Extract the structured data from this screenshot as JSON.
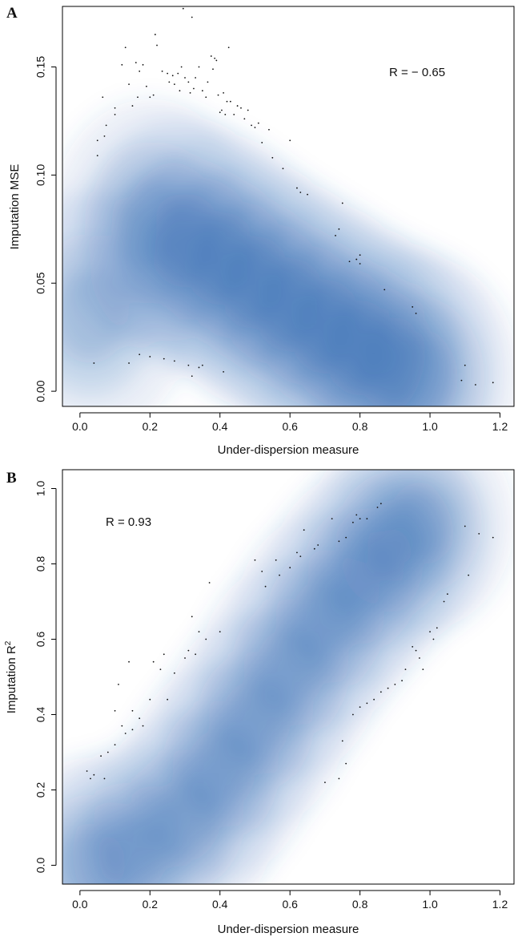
{
  "chart_data": [
    {
      "type": "scatter",
      "panel": "A",
      "xlabel": "Under-dispersion measure",
      "ylabel": "Imputation MSE",
      "annotation": "R = − 0.65",
      "xlim": [
        -0.05,
        1.24
      ],
      "ylim": [
        -0.007,
        0.178
      ],
      "xticks": [
        0.0,
        0.2,
        0.4,
        0.6,
        0.8,
        1.0,
        1.2
      ],
      "xtick_labels": [
        "0.0",
        "0.2",
        "0.4",
        "0.6",
        "0.8",
        "1.0",
        "1.2"
      ],
      "yticks": [
        0.0,
        0.05,
        0.1,
        0.15
      ],
      "ytick_labels": [
        "0.00",
        "0.05",
        "0.10",
        "0.15"
      ],
      "density_color": "#2b66ad",
      "density_ridge": [
        [
          0.03,
          0.035
        ],
        [
          0.2,
          0.078
        ],
        [
          0.3,
          0.07
        ],
        [
          0.4,
          0.062
        ],
        [
          0.5,
          0.05
        ],
        [
          0.6,
          0.04
        ],
        [
          0.7,
          0.03
        ],
        [
          0.8,
          0.02
        ],
        [
          0.9,
          0.012
        ],
        [
          0.97,
          0.006
        ]
      ],
      "outliers": [
        {
          "x": 0.05,
          "y": 0.109
        },
        {
          "x": 0.05,
          "y": 0.116
        },
        {
          "x": 0.065,
          "y": 0.136
        },
        {
          "x": 0.07,
          "y": 0.118
        },
        {
          "x": 0.075,
          "y": 0.123
        },
        {
          "x": 0.1,
          "y": 0.128
        },
        {
          "x": 0.1,
          "y": 0.131
        },
        {
          "x": 0.12,
          "y": 0.151
        },
        {
          "x": 0.13,
          "y": 0.159
        },
        {
          "x": 0.14,
          "y": 0.142
        },
        {
          "x": 0.15,
          "y": 0.132
        },
        {
          "x": 0.16,
          "y": 0.152
        },
        {
          "x": 0.165,
          "y": 0.136
        },
        {
          "x": 0.17,
          "y": 0.148
        },
        {
          "x": 0.18,
          "y": 0.151
        },
        {
          "x": 0.19,
          "y": 0.141
        },
        {
          "x": 0.2,
          "y": 0.136
        },
        {
          "x": 0.21,
          "y": 0.137
        },
        {
          "x": 0.215,
          "y": 0.165
        },
        {
          "x": 0.22,
          "y": 0.16
        },
        {
          "x": 0.235,
          "y": 0.148
        },
        {
          "x": 0.25,
          "y": 0.147
        },
        {
          "x": 0.255,
          "y": 0.143
        },
        {
          "x": 0.265,
          "y": 0.146
        },
        {
          "x": 0.27,
          "y": 0.142
        },
        {
          "x": 0.28,
          "y": 0.147
        },
        {
          "x": 0.285,
          "y": 0.139
        },
        {
          "x": 0.29,
          "y": 0.15
        },
        {
          "x": 0.295,
          "y": 0.177
        },
        {
          "x": 0.3,
          "y": 0.145
        },
        {
          "x": 0.31,
          "y": 0.143
        },
        {
          "x": 0.315,
          "y": 0.138
        },
        {
          "x": 0.32,
          "y": 0.173
        },
        {
          "x": 0.325,
          "y": 0.14
        },
        {
          "x": 0.33,
          "y": 0.145
        },
        {
          "x": 0.34,
          "y": 0.15
        },
        {
          "x": 0.35,
          "y": 0.139
        },
        {
          "x": 0.36,
          "y": 0.136
        },
        {
          "x": 0.365,
          "y": 0.143
        },
        {
          "x": 0.375,
          "y": 0.155
        },
        {
          "x": 0.38,
          "y": 0.149
        },
        {
          "x": 0.385,
          "y": 0.154
        },
        {
          "x": 0.39,
          "y": 0.153
        },
        {
          "x": 0.395,
          "y": 0.137
        },
        {
          "x": 0.4,
          "y": 0.129
        },
        {
          "x": 0.405,
          "y": 0.13
        },
        {
          "x": 0.41,
          "y": 0.138
        },
        {
          "x": 0.415,
          "y": 0.128
        },
        {
          "x": 0.42,
          "y": 0.134
        },
        {
          "x": 0.425,
          "y": 0.159
        },
        {
          "x": 0.43,
          "y": 0.134
        },
        {
          "x": 0.44,
          "y": 0.128
        },
        {
          "x": 0.45,
          "y": 0.132
        },
        {
          "x": 0.46,
          "y": 0.131
        },
        {
          "x": 0.47,
          "y": 0.126
        },
        {
          "x": 0.48,
          "y": 0.13
        },
        {
          "x": 0.49,
          "y": 0.123
        },
        {
          "x": 0.5,
          "y": 0.122
        },
        {
          "x": 0.51,
          "y": 0.124
        },
        {
          "x": 0.52,
          "y": 0.115
        },
        {
          "x": 0.54,
          "y": 0.121
        },
        {
          "x": 0.55,
          "y": 0.108
        },
        {
          "x": 0.58,
          "y": 0.103
        },
        {
          "x": 0.6,
          "y": 0.116
        },
        {
          "x": 0.62,
          "y": 0.094
        },
        {
          "x": 0.63,
          "y": 0.092
        },
        {
          "x": 0.65,
          "y": 0.091
        },
        {
          "x": 0.73,
          "y": 0.072
        },
        {
          "x": 0.74,
          "y": 0.075
        },
        {
          "x": 0.75,
          "y": 0.087
        },
        {
          "x": 0.77,
          "y": 0.06
        },
        {
          "x": 0.79,
          "y": 0.061
        },
        {
          "x": 0.8,
          "y": 0.063
        },
        {
          "x": 0.8,
          "y": 0.059
        },
        {
          "x": 0.87,
          "y": 0.047
        },
        {
          "x": 0.95,
          "y": 0.039
        },
        {
          "x": 0.96,
          "y": 0.036
        },
        {
          "x": 0.04,
          "y": 0.013
        },
        {
          "x": 0.14,
          "y": 0.013
        },
        {
          "x": 0.17,
          "y": 0.017
        },
        {
          "x": 0.2,
          "y": 0.016
        },
        {
          "x": 0.24,
          "y": 0.015
        },
        {
          "x": 0.27,
          "y": 0.014
        },
        {
          "x": 0.31,
          "y": 0.012
        },
        {
          "x": 0.32,
          "y": 0.007
        },
        {
          "x": 0.34,
          "y": 0.011
        },
        {
          "x": 0.35,
          "y": 0.012
        },
        {
          "x": 0.41,
          "y": 0.009
        },
        {
          "x": 1.09,
          "y": 0.005
        },
        {
          "x": 1.1,
          "y": 0.012
        },
        {
          "x": 1.13,
          "y": 0.003
        },
        {
          "x": 1.18,
          "y": 0.004
        }
      ]
    },
    {
      "type": "scatter",
      "panel": "B",
      "xlabel": "Under-dispersion measure",
      "ylabel": "Imputation R",
      "ylabel_superscript": "2",
      "annotation": "R = 0.93",
      "xlim": [
        -0.05,
        1.24
      ],
      "ylim": [
        -0.05,
        1.05
      ],
      "xticks": [
        0.0,
        0.2,
        0.4,
        0.6,
        0.8,
        1.0,
        1.2
      ],
      "xtick_labels": [
        "0.0",
        "0.2",
        "0.4",
        "0.6",
        "0.8",
        "1.0",
        "1.2"
      ],
      "yticks": [
        0.0,
        0.2,
        0.4,
        0.6,
        0.8,
        1.0
      ],
      "ytick_labels": [
        "0.0",
        "0.2",
        "0.4",
        "0.6",
        "0.8",
        "1.0"
      ],
      "density_color": "#2b66ad",
      "density_ridge": [
        [
          0.03,
          0.0
        ],
        [
          0.15,
          0.03
        ],
        [
          0.3,
          0.12
        ],
        [
          0.4,
          0.25
        ],
        [
          0.5,
          0.38
        ],
        [
          0.6,
          0.52
        ],
        [
          0.7,
          0.65
        ],
        [
          0.8,
          0.76
        ],
        [
          0.9,
          0.86
        ],
        [
          0.98,
          0.91
        ]
      ],
      "outliers": [
        {
          "x": 0.02,
          "y": 0.25
        },
        {
          "x": 0.03,
          "y": 0.23
        },
        {
          "x": 0.04,
          "y": 0.24
        },
        {
          "x": 0.06,
          "y": 0.29
        },
        {
          "x": 0.07,
          "y": 0.23
        },
        {
          "x": 0.08,
          "y": 0.3
        },
        {
          "x": 0.1,
          "y": 0.32
        },
        {
          "x": 0.1,
          "y": 0.41
        },
        {
          "x": 0.11,
          "y": 0.48
        },
        {
          "x": 0.12,
          "y": 0.37
        },
        {
          "x": 0.13,
          "y": 0.35
        },
        {
          "x": 0.14,
          "y": 0.54
        },
        {
          "x": 0.15,
          "y": 0.41
        },
        {
          "x": 0.15,
          "y": 0.36
        },
        {
          "x": 0.17,
          "y": 0.39
        },
        {
          "x": 0.18,
          "y": 0.37
        },
        {
          "x": 0.2,
          "y": 0.44
        },
        {
          "x": 0.21,
          "y": 0.54
        },
        {
          "x": 0.23,
          "y": 0.52
        },
        {
          "x": 0.24,
          "y": 0.56
        },
        {
          "x": 0.25,
          "y": 0.44
        },
        {
          "x": 0.27,
          "y": 0.51
        },
        {
          "x": 0.3,
          "y": 0.55
        },
        {
          "x": 0.31,
          "y": 0.57
        },
        {
          "x": 0.32,
          "y": 0.66
        },
        {
          "x": 0.33,
          "y": 0.56
        },
        {
          "x": 0.34,
          "y": 0.62
        },
        {
          "x": 0.36,
          "y": 0.6
        },
        {
          "x": 0.37,
          "y": 0.75
        },
        {
          "x": 0.4,
          "y": 0.62
        },
        {
          "x": 0.5,
          "y": 0.81
        },
        {
          "x": 0.52,
          "y": 0.78
        },
        {
          "x": 0.53,
          "y": 0.74
        },
        {
          "x": 0.56,
          "y": 0.81
        },
        {
          "x": 0.57,
          "y": 0.77
        },
        {
          "x": 0.6,
          "y": 0.79
        },
        {
          "x": 0.62,
          "y": 0.83
        },
        {
          "x": 0.63,
          "y": 0.82
        },
        {
          "x": 0.64,
          "y": 0.89
        },
        {
          "x": 0.67,
          "y": 0.84
        },
        {
          "x": 0.68,
          "y": 0.85
        },
        {
          "x": 0.72,
          "y": 0.92
        },
        {
          "x": 0.74,
          "y": 0.86
        },
        {
          "x": 0.76,
          "y": 0.87
        },
        {
          "x": 0.78,
          "y": 0.91
        },
        {
          "x": 0.79,
          "y": 0.93
        },
        {
          "x": 0.8,
          "y": 0.92
        },
        {
          "x": 0.82,
          "y": 0.92
        },
        {
          "x": 0.85,
          "y": 0.95
        },
        {
          "x": 0.86,
          "y": 0.96
        },
        {
          "x": 0.7,
          "y": 0.22
        },
        {
          "x": 0.74,
          "y": 0.23
        },
        {
          "x": 0.75,
          "y": 0.33
        },
        {
          "x": 0.76,
          "y": 0.27
        },
        {
          "x": 0.78,
          "y": 0.4
        },
        {
          "x": 0.8,
          "y": 0.42
        },
        {
          "x": 0.82,
          "y": 0.43
        },
        {
          "x": 0.84,
          "y": 0.44
        },
        {
          "x": 0.86,
          "y": 0.46
        },
        {
          "x": 0.88,
          "y": 0.47
        },
        {
          "x": 0.9,
          "y": 0.48
        },
        {
          "x": 0.92,
          "y": 0.49
        },
        {
          "x": 0.93,
          "y": 0.52
        },
        {
          "x": 0.95,
          "y": 0.58
        },
        {
          "x": 0.96,
          "y": 0.57
        },
        {
          "x": 0.97,
          "y": 0.55
        },
        {
          "x": 0.98,
          "y": 0.52
        },
        {
          "x": 1.0,
          "y": 0.62
        },
        {
          "x": 1.01,
          "y": 0.6
        },
        {
          "x": 1.02,
          "y": 0.63
        },
        {
          "x": 1.04,
          "y": 0.7
        },
        {
          "x": 1.05,
          "y": 0.72
        },
        {
          "x": 1.1,
          "y": 0.9
        },
        {
          "x": 1.11,
          "y": 0.77
        },
        {
          "x": 1.14,
          "y": 0.88
        },
        {
          "x": 1.18,
          "y": 0.87
        }
      ]
    }
  ]
}
